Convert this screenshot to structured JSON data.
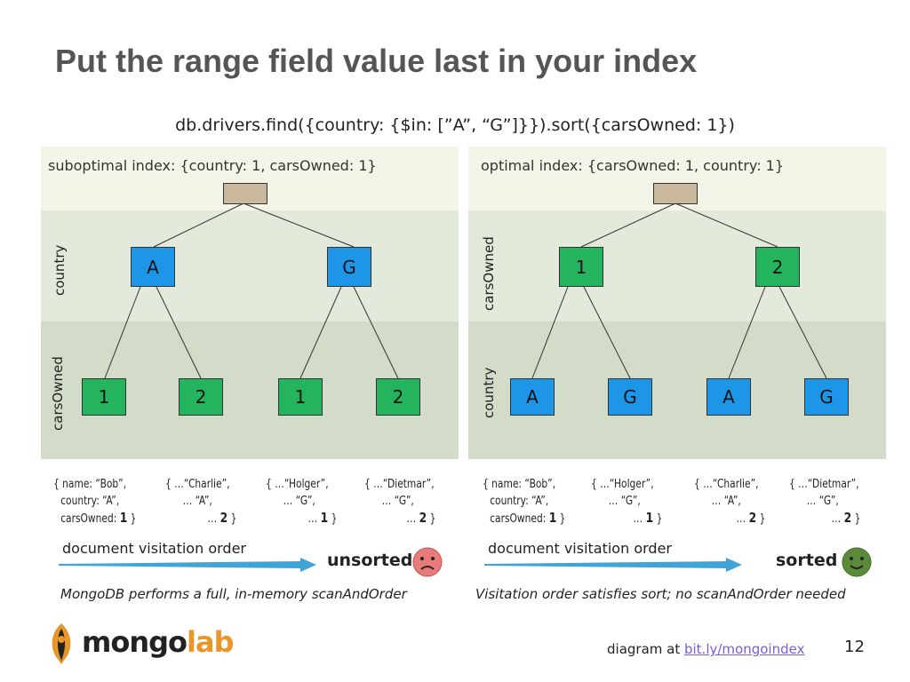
{
  "title": "Put the range field value last in your index",
  "query": "db.drivers.find({country: {$in: [”A”, “G”]}}).sort({carsOwned: 1})",
  "left": {
    "index_label": "suboptimal index: {country: 1, carsOwned: 1}",
    "top_label": "country",
    "bottom_label": "carsOwned",
    "level1": [
      "A",
      "G"
    ],
    "level2": [
      "1",
      "2",
      "1",
      "2"
    ],
    "docs": [
      {
        "line1": "{ name: “Bob”,",
        "line2": "country: “A”,",
        "line3_pre": "carsOwned: ",
        "line3_val": "1",
        "line3_post": " }"
      },
      {
        "line1": "{ …“Charlie”,",
        "line2": "… “A”,",
        "line3_pre": "… ",
        "line3_val": "2",
        "line3_post": " }"
      },
      {
        "line1": "{ …“Holger”,",
        "line2": "… “G”,",
        "line3_pre": "… ",
        "line3_val": "1",
        "line3_post": " }"
      },
      {
        "line1": "{ …“Dietmar”,",
        "line2": "… “G”,",
        "line3_pre": "… ",
        "line3_val": "2",
        "line3_post": " }"
      }
    ],
    "order_label": "document visitation order",
    "status": "unsorted",
    "status_icon": "sad-face-icon",
    "note": "MongoDB performs a full, in-memory scanAndOrder"
  },
  "right": {
    "index_label": "optimal index: {carsOwned: 1, country: 1}",
    "top_label": "carsOwned",
    "bottom_label": "country",
    "level1": [
      "1",
      "2"
    ],
    "level2": [
      "A",
      "G",
      "A",
      "G"
    ],
    "docs": [
      {
        "line1": "{ name: “Bob”,",
        "line2": "country: “A”,",
        "line3_pre": "carsOwned: ",
        "line3_val": "1",
        "line3_post": " }"
      },
      {
        "line1": "{ …“Holger”,",
        "line2": "… “G”,",
        "line3_pre": "… ",
        "line3_val": "1",
        "line3_post": " }"
      },
      {
        "line1": "{ …“Charlie”,",
        "line2": "… “A”,",
        "line3_pre": "… ",
        "line3_val": "2",
        "line3_post": " }"
      },
      {
        "line1": "{ …“Dietmar”,",
        "line2": "… “G”,",
        "line3_pre": "… ",
        "line3_val": "2",
        "line3_post": " }"
      }
    ],
    "order_label": "document visitation order",
    "status": "sorted",
    "status_icon": "smiley-face-icon",
    "note": "Visitation order satisfies sort; no scanAndOrder needed"
  },
  "logo": {
    "mongo": "mongo",
    "lab": "lab",
    "icon": "mongolab-leaf-icon"
  },
  "credit": {
    "prefix": "diagram at ",
    "link": "bit.ly/mongoindex "
  },
  "page_number": "12",
  "colors": {
    "root": "#c9b89e",
    "blue_node": "#1e96e8",
    "green_node": "#24b45e",
    "sad_face": "#e87a7a",
    "happy_face": "#5a8a3a",
    "lab_orange": "#e8962a"
  }
}
